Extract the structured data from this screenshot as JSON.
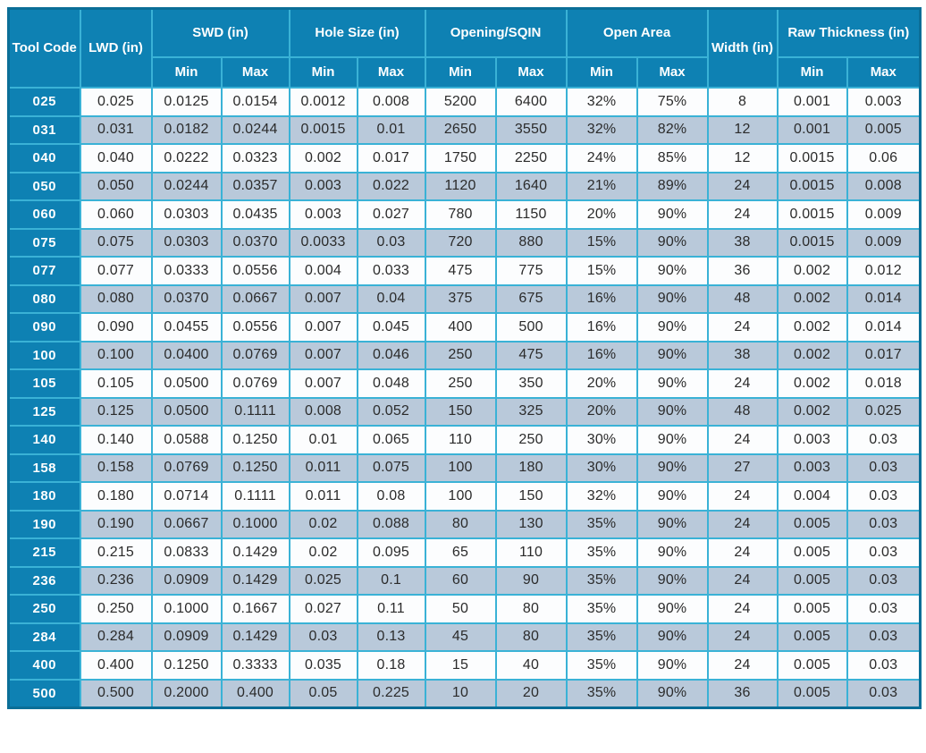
{
  "table": {
    "header": {
      "tool_code": "Tool Code",
      "lwd": "LWD (in)",
      "swd": "SWD (in)",
      "hole_size": "Hole Size (in)",
      "opening": "Opening/SQIN",
      "open_area": "Open Area",
      "width": "Width (in)",
      "raw_thickness": "Raw Thickness (in)",
      "min": "Min",
      "max": "Max"
    },
    "columns": [
      "Tool Code",
      "LWD (in)",
      "SWD (in) Min",
      "SWD (in) Max",
      "Hole Size (in) Min",
      "Hole Size (in) Max",
      "Opening/SQIN Min",
      "Opening/SQIN Max",
      "Open Area Min",
      "Open Area Max",
      "Width (in)",
      "Raw Thickness (in) Min",
      "Raw Thickness (in) Max"
    ],
    "rows": [
      [
        "025",
        "0.025",
        "0.0125",
        "0.0154",
        "0.0012",
        "0.008",
        "5200",
        "6400",
        "32%",
        "75%",
        "8",
        "0.001",
        "0.003"
      ],
      [
        "031",
        "0.031",
        "0.0182",
        "0.0244",
        "0.0015",
        "0.01",
        "2650",
        "3550",
        "32%",
        "82%",
        "12",
        "0.001",
        "0.005"
      ],
      [
        "040",
        "0.040",
        "0.0222",
        "0.0323",
        "0.002",
        "0.017",
        "1750",
        "2250",
        "24%",
        "85%",
        "12",
        "0.0015",
        "0.06"
      ],
      [
        "050",
        "0.050",
        "0.0244",
        "0.0357",
        "0.003",
        "0.022",
        "1120",
        "1640",
        "21%",
        "89%",
        "24",
        "0.0015",
        "0.008"
      ],
      [
        "060",
        "0.060",
        "0.0303",
        "0.0435",
        "0.003",
        "0.027",
        "780",
        "1150",
        "20%",
        "90%",
        "24",
        "0.0015",
        "0.009"
      ],
      [
        "075",
        "0.075",
        "0.0303",
        "0.0370",
        "0.0033",
        "0.03",
        "720",
        "880",
        "15%",
        "90%",
        "38",
        "0.0015",
        "0.009"
      ],
      [
        "077",
        "0.077",
        "0.0333",
        "0.0556",
        "0.004",
        "0.033",
        "475",
        "775",
        "15%",
        "90%",
        "36",
        "0.002",
        "0.012"
      ],
      [
        "080",
        "0.080",
        "0.0370",
        "0.0667",
        "0.007",
        "0.04",
        "375",
        "675",
        "16%",
        "90%",
        "48",
        "0.002",
        "0.014"
      ],
      [
        "090",
        "0.090",
        "0.0455",
        "0.0556",
        "0.007",
        "0.045",
        "400",
        "500",
        "16%",
        "90%",
        "24",
        "0.002",
        "0.014"
      ],
      [
        "100",
        "0.100",
        "0.0400",
        "0.0769",
        "0.007",
        "0.046",
        "250",
        "475",
        "16%",
        "90%",
        "38",
        "0.002",
        "0.017"
      ],
      [
        "105",
        "0.105",
        "0.0500",
        "0.0769",
        "0.007",
        "0.048",
        "250",
        "350",
        "20%",
        "90%",
        "24",
        "0.002",
        "0.018"
      ],
      [
        "125",
        "0.125",
        "0.0500",
        "0.1111",
        "0.008",
        "0.052",
        "150",
        "325",
        "20%",
        "90%",
        "48",
        "0.002",
        "0.025"
      ],
      [
        "140",
        "0.140",
        "0.0588",
        "0.1250",
        "0.01",
        "0.065",
        "110",
        "250",
        "30%",
        "90%",
        "24",
        "0.003",
        "0.03"
      ],
      [
        "158",
        "0.158",
        "0.0769",
        "0.1250",
        "0.011",
        "0.075",
        "100",
        "180",
        "30%",
        "90%",
        "27",
        "0.003",
        "0.03"
      ],
      [
        "180",
        "0.180",
        "0.0714",
        "0.1111",
        "0.011",
        "0.08",
        "100",
        "150",
        "32%",
        "90%",
        "24",
        "0.004",
        "0.03"
      ],
      [
        "190",
        "0.190",
        "0.0667",
        "0.1000",
        "0.02",
        "0.088",
        "80",
        "130",
        "35%",
        "90%",
        "24",
        "0.005",
        "0.03"
      ],
      [
        "215",
        "0.215",
        "0.0833",
        "0.1429",
        "0.02",
        "0.095",
        "65",
        "110",
        "35%",
        "90%",
        "24",
        "0.005",
        "0.03"
      ],
      [
        "236",
        "0.236",
        "0.0909",
        "0.1429",
        "0.025",
        "0.1",
        "60",
        "90",
        "35%",
        "90%",
        "24",
        "0.005",
        "0.03"
      ],
      [
        "250",
        "0.250",
        "0.1000",
        "0.1667",
        "0.027",
        "0.11",
        "50",
        "80",
        "35%",
        "90%",
        "24",
        "0.005",
        "0.03"
      ],
      [
        "284",
        "0.284",
        "0.0909",
        "0.1429",
        "0.03",
        "0.13",
        "45",
        "80",
        "35%",
        "90%",
        "24",
        "0.005",
        "0.03"
      ],
      [
        "400",
        "0.400",
        "0.1250",
        "0.3333",
        "0.035",
        "0.18",
        "15",
        "40",
        "35%",
        "90%",
        "24",
        "0.005",
        "0.03"
      ],
      [
        "500",
        "0.500",
        "0.2000",
        "0.400",
        "0.05",
        "0.225",
        "10",
        "20",
        "35%",
        "90%",
        "36",
        "0.005",
        "0.03"
      ]
    ]
  },
  "colors": {
    "header_bg": "#0E81B3",
    "tool_code_bg": "#0E81B3",
    "grid_border": "#3AB2D6",
    "outer_border": "#0B6E97",
    "row_bg": "#FCFDFE",
    "row_alt_bg": "#B9C9DA",
    "header_text": "#FFFFFF",
    "cell_text": "#2B2B2B"
  }
}
